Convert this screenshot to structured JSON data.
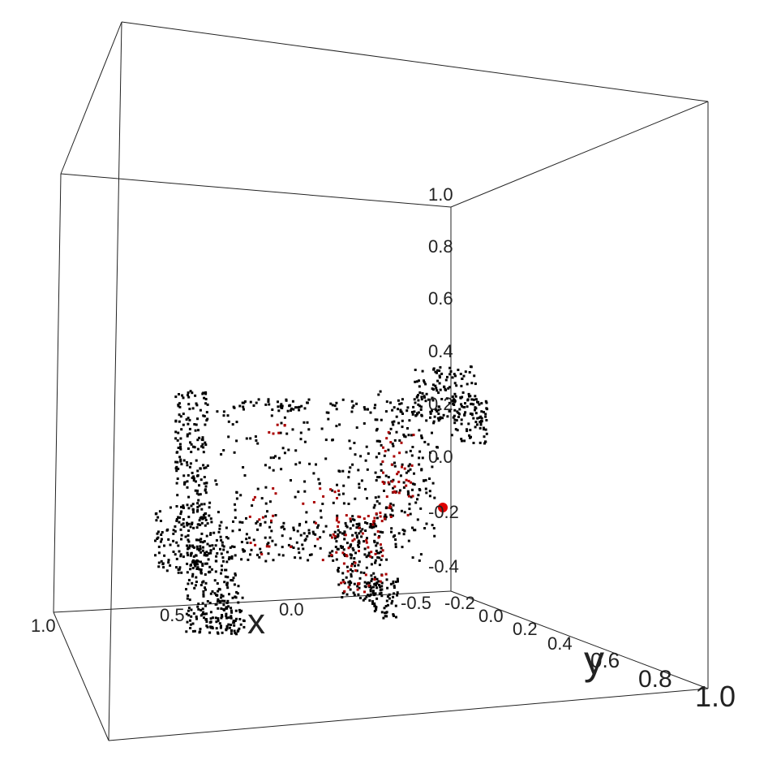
{
  "chart_data": {
    "type": "scatter",
    "projection": "3d",
    "title": "",
    "xlabel": "x",
    "ylabel": "y",
    "zlabel": "",
    "xlim": [
      -0.5,
      1.0
    ],
    "ylim": [
      -0.2,
      1.0
    ],
    "zlim": [
      -0.5,
      1.0
    ],
    "grid": false,
    "x_ticks": [
      "1.0",
      "0.5",
      "0.0",
      "-0.5"
    ],
    "y_ticks": [
      "-0.2",
      "0.0",
      "0.2",
      "0.4",
      "0.6",
      "0.8",
      "1.0"
    ],
    "z_ticks": [
      "1.0",
      "0.8",
      "0.6",
      "0.4",
      "0.2",
      "0.0",
      "-0.2",
      "-0.4"
    ],
    "series": [
      {
        "color": "#000000",
        "shape": "point cloud of a cow (side view, head at right)",
        "approx_count": 1500
      },
      {
        "color": "#aa0000",
        "shape": "highlighted subset on belly and front legs",
        "approx_count": 150
      }
    ],
    "highlight_point": {
      "color": "#dd0000",
      "x": -0.5,
      "y": -0.2,
      "z": -0.2
    }
  }
}
